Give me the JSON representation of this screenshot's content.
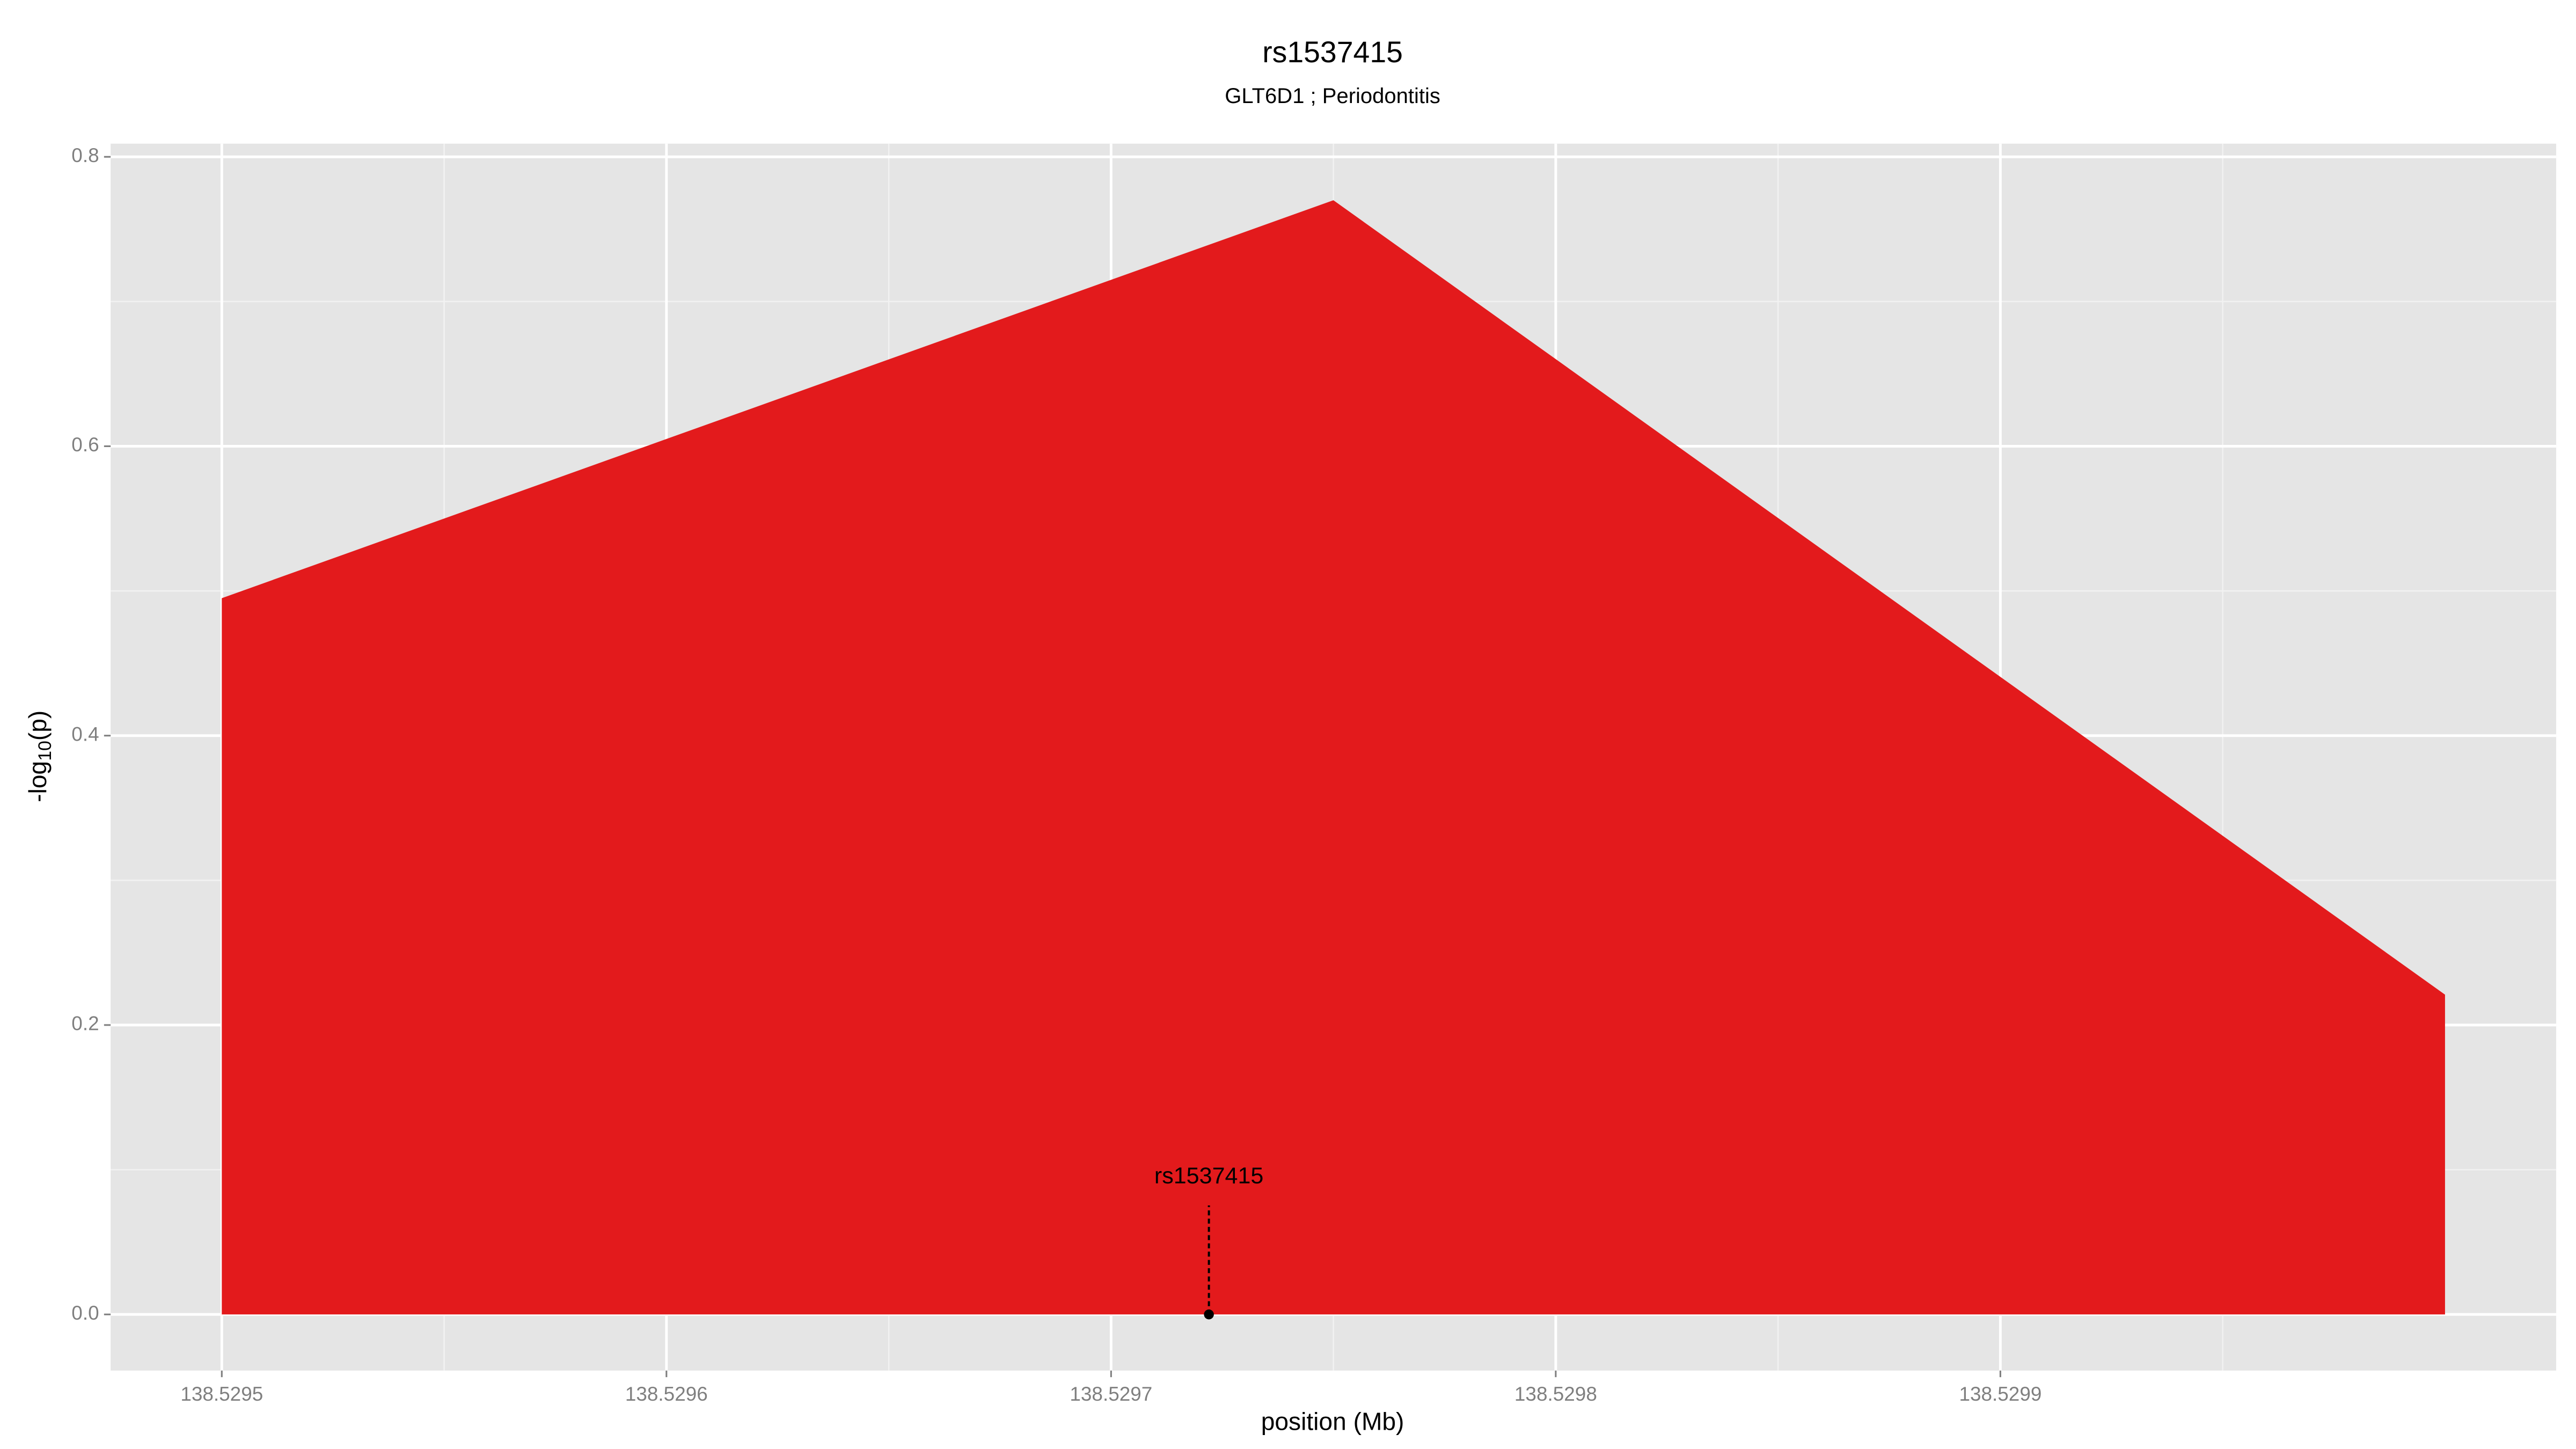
{
  "chart_data": {
    "type": "area",
    "title": "rs1537415",
    "subtitle": "GLT6D1 ; Periodontitis",
    "xlabel": "position (Mb)",
    "ylabel_parts": [
      "-log",
      "10",
      "(p)"
    ],
    "x": [
      138.5295,
      138.52975,
      138.53
    ],
    "series": [
      {
        "color": "#e31a1c",
        "values": [
          0.495,
          0.77,
          0.221
        ]
      }
    ],
    "xlim": [
      138.529475,
      138.530025
    ],
    "ylim": [
      -0.0388,
      0.8091
    ],
    "xticks": [
      138.5295,
      138.5296,
      138.5297,
      138.5298,
      138.5299
    ],
    "yticks": [
      {
        "value": 0,
        "label": "0.0"
      },
      0.2,
      0.4,
      0.6,
      0.8
    ],
    "grid": true,
    "annotations": [
      {
        "text": "rs1537415",
        "x": 138.529722,
        "y": 0
      }
    ]
  }
}
